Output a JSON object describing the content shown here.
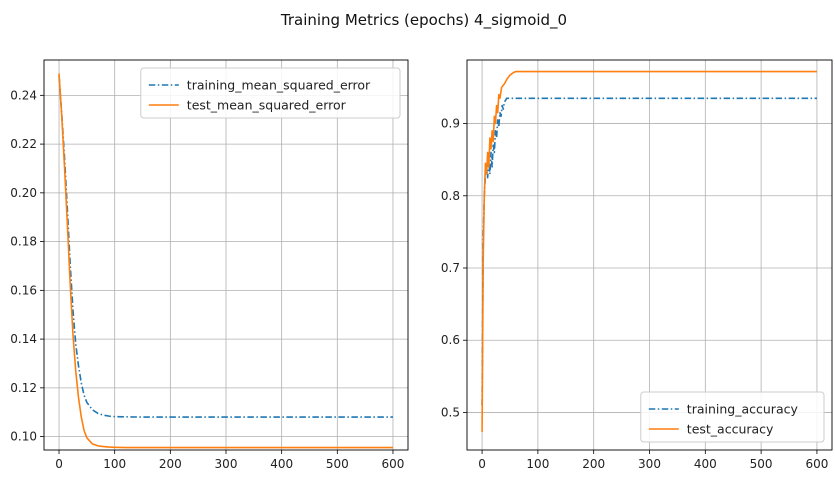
{
  "figure": {
    "suptitle": "Training Metrics (epochs) 4_sigmoid_0"
  },
  "chart_data": [
    {
      "type": "line",
      "title": "",
      "xlabel": "",
      "ylabel": "",
      "xlim": [
        -27,
        627
      ],
      "ylim": [
        0.0945,
        0.2545
      ],
      "xticks": [
        0,
        100,
        200,
        300,
        400,
        500,
        600
      ],
      "yticks": [
        0.1,
        0.12,
        0.14,
        0.16,
        0.18,
        0.2,
        0.22,
        0.24
      ],
      "ytick_decimals": 2,
      "grid": true,
      "legend_position": "top-right",
      "series": [
        {
          "name": "training_mean_squared_error",
          "color": "#1f77b4",
          "dash": "dash-dot",
          "x": [
            0,
            5,
            10,
            15,
            20,
            25,
            30,
            35,
            40,
            45,
            50,
            60,
            70,
            80,
            90,
            100,
            120,
            150,
            200,
            300,
            400,
            500,
            600
          ],
          "y": [
            0.248,
            0.232,
            0.214,
            0.193,
            0.171,
            0.152,
            0.138,
            0.129,
            0.122,
            0.117,
            0.114,
            0.111,
            0.1095,
            0.1088,
            0.1084,
            0.1082,
            0.1081,
            0.108,
            0.108,
            0.108,
            0.108,
            0.108,
            0.108
          ]
        },
        {
          "name": "test_mean_squared_error",
          "color": "#ff7f0e",
          "dash": "solid",
          "x": [
            0,
            5,
            10,
            15,
            20,
            25,
            30,
            35,
            40,
            45,
            50,
            60,
            70,
            80,
            90,
            100,
            120,
            150,
            200,
            300,
            400,
            500,
            600
          ],
          "y": [
            0.249,
            0.231,
            0.21,
            0.187,
            0.163,
            0.142,
            0.127,
            0.116,
            0.108,
            0.1025,
            0.0995,
            0.097,
            0.0962,
            0.0959,
            0.0957,
            0.0956,
            0.0955,
            0.0955,
            0.0955,
            0.0955,
            0.0955,
            0.0955,
            0.0955
          ]
        }
      ]
    },
    {
      "type": "line",
      "title": "",
      "xlabel": "",
      "ylabel": "",
      "xlim": [
        -27,
        627
      ],
      "ylim": [
        0.448,
        0.988
      ],
      "xticks": [
        0,
        100,
        200,
        300,
        400,
        500,
        600
      ],
      "yticks": [
        0.5,
        0.6,
        0.7,
        0.8,
        0.9
      ],
      "ytick_decimals": 1,
      "grid": true,
      "legend_position": "bottom-right",
      "series": [
        {
          "name": "training_accuracy",
          "color": "#1f77b4",
          "dash": "dash-dot",
          "x": [
            0,
            2,
            4,
            6,
            8,
            10,
            12,
            14,
            16,
            18,
            20,
            22,
            24,
            26,
            28,
            30,
            32,
            34,
            36,
            38,
            40,
            42,
            44,
            50,
            100,
            600
          ],
          "y": [
            0.51,
            0.74,
            0.8,
            0.83,
            0.84,
            0.825,
            0.85,
            0.83,
            0.86,
            0.84,
            0.87,
            0.86,
            0.89,
            0.88,
            0.905,
            0.895,
            0.915,
            0.91,
            0.925,
            0.92,
            0.93,
            0.932,
            0.935,
            0.935,
            0.935,
            0.935
          ]
        },
        {
          "name": "test_accuracy",
          "color": "#ff7f0e",
          "dash": "solid",
          "x": [
            0,
            2,
            4,
            6,
            8,
            10,
            12,
            14,
            16,
            18,
            20,
            22,
            24,
            26,
            28,
            30,
            32,
            35,
            40,
            45,
            50,
            55,
            60,
            70,
            100,
            600
          ],
          "y": [
            0.473,
            0.71,
            0.8,
            0.845,
            0.83,
            0.86,
            0.84,
            0.88,
            0.865,
            0.89,
            0.875,
            0.91,
            0.9,
            0.925,
            0.915,
            0.94,
            0.935,
            0.95,
            0.955,
            0.962,
            0.967,
            0.97,
            0.972,
            0.972,
            0.972,
            0.972
          ]
        }
      ]
    }
  ]
}
